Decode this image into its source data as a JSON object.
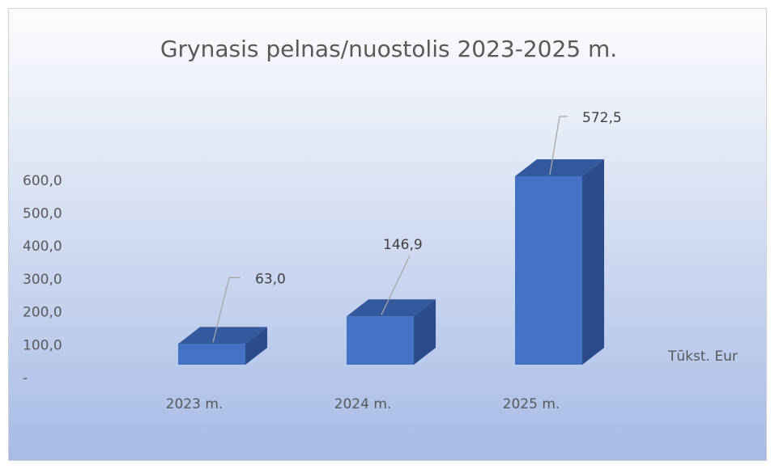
{
  "chart_data": {
    "type": "bar3d",
    "title": "Grynasis pelnas/nuostolis 2023-2025 m.",
    "categories": [
      "2023 m.",
      "2024 m.",
      "2025 m."
    ],
    "values": [
      63.0,
      146.9,
      572.5
    ],
    "value_labels": [
      "63,0",
      "146,9",
      "572,5"
    ],
    "color": "#4472c4",
    "y_label": "Tūkst. Eur",
    "ylim": [
      0,
      600
    ],
    "yticks": [
      {
        "value": 0,
        "label": "-"
      },
      {
        "value": 100,
        "label": "100,0"
      },
      {
        "value": 200,
        "label": "200,0"
      },
      {
        "value": 300,
        "label": "300,0"
      },
      {
        "value": 400,
        "label": "400,0"
      },
      {
        "value": 500,
        "label": "500,0"
      },
      {
        "value": 600,
        "label": "600,0"
      }
    ],
    "grid": false
  }
}
